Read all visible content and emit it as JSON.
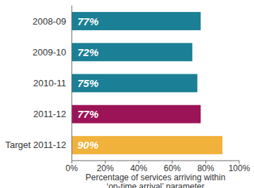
{
  "chart_data": {
    "type": "bar",
    "orientation": "horizontal",
    "categories": [
      "2008-09",
      "2009-10",
      "2010-11",
      "2011-12",
      "Target 2011-12"
    ],
    "values": [
      77,
      72,
      75,
      77,
      90
    ],
    "value_labels": [
      "77%",
      "72%",
      "75%",
      "77%",
      "90%"
    ],
    "colors": [
      "#1b7f95",
      "#1b7f95",
      "#1b7f95",
      "#9c1458",
      "#f1b23c"
    ],
    "data_labels": true,
    "xlabel": "Percentage of services arriving within\n‘on-time arrival’ parameter",
    "xlim": [
      0,
      100
    ],
    "xticks": [
      {
        "value": 0,
        "label": "0%"
      },
      {
        "value": 20,
        "label": "20%"
      },
      {
        "value": 40,
        "label": "40%"
      },
      {
        "value": 60,
        "label": "60%"
      },
      {
        "value": 80,
        "label": "80%"
      },
      {
        "value": 100,
        "label": "100%"
      }
    ],
    "grid": false
  }
}
